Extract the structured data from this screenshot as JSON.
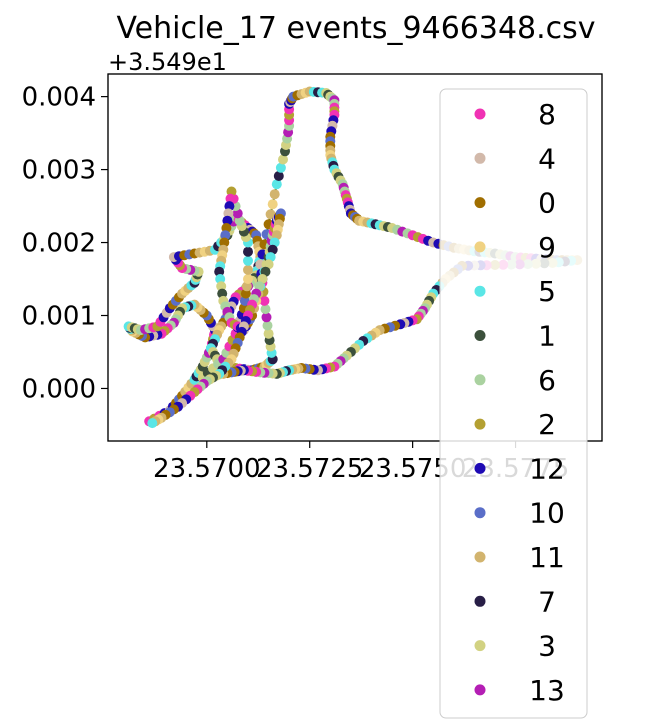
{
  "chart_data": {
    "type": "scatter",
    "title": "Vehicle_17 events_9466348.csv",
    "xlabel": "",
    "ylabel": "",
    "y_offset_label": "+3.549e1",
    "xlim": [
      23.5676,
      23.5796
    ],
    "ylim": [
      -0.00072,
      0.00431
    ],
    "x_ticks": [
      23.57,
      23.5725,
      23.575,
      23.5775
    ],
    "x_tick_labels": [
      "23.5700",
      "23.5725",
      "23.5750",
      "23.5775"
    ],
    "y_ticks": [
      0.0,
      0.001,
      0.002,
      0.003,
      0.004
    ],
    "y_tick_labels": [
      "0.000",
      "0.001",
      "0.002",
      "0.003",
      "0.004"
    ],
    "grid": false,
    "legend_position": "right",
    "route_line_color": "#3a7d1e",
    "series": [
      {
        "name": "8",
        "color": "#f032b4"
      },
      {
        "name": "4",
        "color": "#d2b9aa"
      },
      {
        "name": "0",
        "color": "#a06e00"
      },
      {
        "name": "9",
        "color": "#f0d282"
      },
      {
        "name": "5",
        "color": "#5ae6e6"
      },
      {
        "name": "1",
        "color": "#3c503c"
      },
      {
        "name": "6",
        "color": "#aad2a0"
      },
      {
        "name": "2",
        "color": "#b4a032"
      },
      {
        "name": "12",
        "color": "#1e0ab4"
      },
      {
        "name": "10",
        "color": "#5a6ec8"
      },
      {
        "name": "11",
        "color": "#d2b46e"
      },
      {
        "name": "7",
        "color": "#281e46"
      },
      {
        "name": "3",
        "color": "#d2d282"
      },
      {
        "name": "13",
        "color": "#b41eb4"
      }
    ],
    "route": [
      [
        23.5686,
        -0.00045
      ],
      [
        23.5691,
        -0.0003
      ],
      [
        23.5694,
        -0.0001
      ],
      [
        23.5697,
        0.00012
      ],
      [
        23.5699,
        0.0003
      ],
      [
        23.5701,
        0.00055
      ],
      [
        23.5702,
        0.0008
      ],
      [
        23.57,
        0.001
      ],
      [
        23.5697,
        0.00115
      ],
      [
        23.5694,
        0.0011
      ],
      [
        23.5692,
        0.0009
      ],
      [
        23.5689,
        0.00075
      ],
      [
        23.5685,
        0.0007
      ],
      [
        23.5682,
        0.00078
      ],
      [
        23.5681,
        0.00085
      ],
      [
        23.5684,
        0.0008
      ],
      [
        23.5688,
        0.00085
      ],
      [
        23.5691,
        0.0011
      ],
      [
        23.5694,
        0.0013
      ],
      [
        23.5697,
        0.00145
      ],
      [
        23.5698,
        0.0016
      ],
      [
        23.5694,
        0.00165
      ],
      [
        23.5692,
        0.0018
      ],
      [
        23.5697,
        0.00185
      ],
      [
        23.5702,
        0.0019
      ],
      [
        23.5705,
        0.0021
      ],
      [
        23.5707,
        0.00235
      ],
      [
        23.571,
        0.0022
      ],
      [
        23.5712,
        0.0021
      ],
      [
        23.5713,
        0.0018
      ],
      [
        23.5712,
        0.00155
      ],
      [
        23.571,
        0.0014
      ],
      [
        23.5707,
        0.00125
      ],
      [
        23.5705,
        0.001
      ],
      [
        23.5703,
        0.0008
      ],
      [
        23.5701,
        0.00055
      ],
      [
        23.5703,
        0.00035
      ],
      [
        23.5707,
        0.00028
      ],
      [
        23.5711,
        0.00025
      ],
      [
        23.5714,
        0.0003
      ],
      [
        23.5716,
        0.0004
      ],
      [
        23.5715,
        0.00075
      ],
      [
        23.5714,
        0.0012
      ],
      [
        23.5713,
        0.0017
      ],
      [
        23.5715,
        0.00225
      ],
      [
        23.5717,
        0.0028
      ],
      [
        23.5719,
        0.00325
      ],
      [
        23.572,
        0.0036
      ],
      [
        23.572,
        0.0039
      ],
      [
        23.5721,
        0.004
      ],
      [
        23.5725,
        0.00407
      ],
      [
        23.5729,
        0.00405
      ],
      [
        23.5731,
        0.00395
      ],
      [
        23.5731,
        0.00375
      ],
      [
        23.573,
        0.00345
      ],
      [
        23.573,
        0.0032
      ],
      [
        23.5731,
        0.003
      ],
      [
        23.5733,
        0.0028
      ],
      [
        23.5734,
        0.0026
      ],
      [
        23.5735,
        0.0024
      ],
      [
        23.5737,
        0.0023
      ],
      [
        23.5741,
        0.00225
      ],
      [
        23.5745,
        0.0022
      ],
      [
        23.575,
        0.0021
      ],
      [
        23.5755,
        0.002
      ],
      [
        23.576,
        0.00193
      ],
      [
        23.5765,
        0.00188
      ],
      [
        23.577,
        0.00185
      ],
      [
        23.5775,
        0.0018
      ],
      [
        23.578,
        0.00178
      ],
      [
        23.5785,
        0.00176
      ],
      [
        23.579,
        0.00176
      ],
      [
        23.5784,
        0.00172
      ],
      [
        23.5776,
        0.0017
      ],
      [
        23.5768,
        0.00169
      ],
      [
        23.5762,
        0.00168
      ],
      [
        23.5758,
        0.0015
      ],
      [
        23.5755,
        0.0013
      ],
      [
        23.5753,
        0.0011
      ],
      [
        23.5751,
        0.00095
      ],
      [
        23.5747,
        0.00088
      ],
      [
        23.5742,
        0.0008
      ],
      [
        23.5738,
        0.00065
      ],
      [
        23.5734,
        0.00045
      ],
      [
        23.5731,
        0.0003
      ],
      [
        23.5727,
        0.00025
      ],
      [
        23.5723,
        0.00028
      ],
      [
        23.572,
        0.00025
      ],
      [
        23.5717,
        0.0002
      ],
      [
        23.5713,
        0.00022
      ],
      [
        23.5709,
        0.00025
      ],
      [
        23.5706,
        0.00022
      ],
      [
        23.5702,
        0.00018
      ],
      [
        23.5699,
        0.00015
      ],
      [
        23.5704,
        0.0004
      ],
      [
        23.5707,
        0.00075
      ],
      [
        23.5709,
        0.0011
      ],
      [
        23.571,
        0.0015
      ],
      [
        23.571,
        0.002
      ],
      [
        23.5708,
        0.0023
      ],
      [
        23.5706,
        0.0027
      ],
      [
        23.5705,
        0.0023
      ],
      [
        23.5704,
        0.0019
      ],
      [
        23.5703,
        0.0016
      ],
      [
        23.5704,
        0.0012
      ],
      [
        23.5706,
        0.0009
      ],
      [
        23.5709,
        0.0008
      ],
      [
        23.5711,
        0.001
      ],
      [
        23.5713,
        0.0014
      ],
      [
        23.5715,
        0.0018
      ],
      [
        23.5716,
        0.0021
      ],
      [
        23.5717,
        0.0023
      ],
      [
        23.5718,
        0.0024
      ],
      [
        23.5717,
        0.0021
      ],
      [
        23.5715,
        0.0017
      ],
      [
        23.5712,
        0.0013
      ],
      [
        23.571,
        0.001
      ],
      [
        23.5708,
        0.0007
      ],
      [
        23.5706,
        0.0004
      ],
      [
        23.5703,
        0.0002
      ],
      [
        23.57,
        0.0001
      ],
      [
        23.5697,
        -5e-05
      ],
      [
        23.5693,
        -0.00025
      ],
      [
        23.5689,
        -0.0004
      ],
      [
        23.5686,
        -0.0005
      ]
    ]
  }
}
